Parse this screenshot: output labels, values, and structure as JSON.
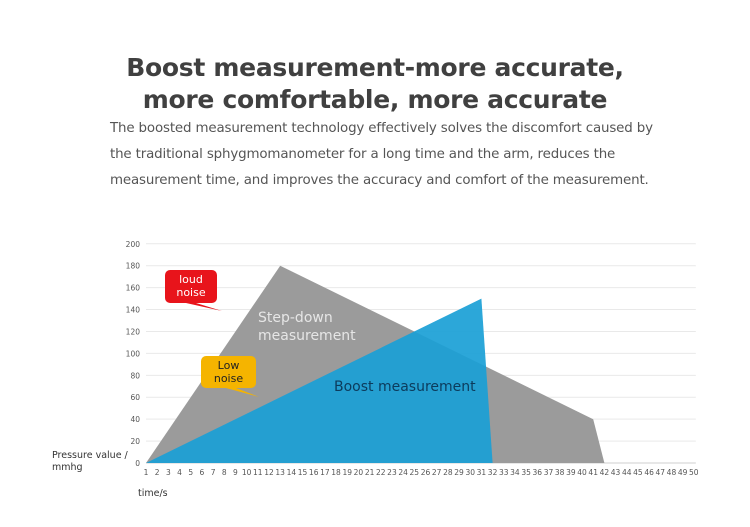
{
  "heading": {
    "line1": "Boost measurement-more accurate,",
    "line2": "more comfortable, more accurate"
  },
  "description": {
    "line1": "The boosted measurement technology effectively solves the discomfort caused by",
    "line2": "the traditional sphygmomanometer for a long time and the arm, reduces the",
    "line3": "measurement time, and improves the accuracy and comfort of the measurement."
  },
  "chart_data": {
    "type": "area",
    "xlabel": "time/s",
    "ylabel": "Pressure value / mmhg",
    "x_ticks": [
      "1",
      "2",
      "3",
      "4",
      "5",
      "6",
      "7",
      "8",
      "9",
      "10",
      "11",
      "12",
      "13",
      "14",
      "15",
      "16",
      "17",
      "18",
      "19",
      "20",
      "21",
      "22",
      "23",
      "24",
      "25",
      "26",
      "27",
      "28",
      "29",
      "30",
      "31",
      "32",
      "33",
      "34",
      "35",
      "36",
      "37",
      "38",
      "39",
      "40",
      "41",
      "42",
      "43",
      "44",
      "45",
      "46",
      "47",
      "48",
      "49",
      "50"
    ],
    "y_ticks": [
      "0",
      "20",
      "40",
      "60",
      "80",
      "100",
      "120",
      "140",
      "160",
      "180",
      "200"
    ],
    "xlim": [
      1,
      50
    ],
    "ylim": [
      0,
      200
    ],
    "grid": true,
    "series": [
      {
        "name": "Step-down measurement",
        "color": "#9b9b9b",
        "points": [
          [
            1,
            0
          ],
          [
            13,
            180
          ],
          [
            41,
            40
          ],
          [
            42,
            0
          ]
        ]
      },
      {
        "name": "Boost measurement",
        "color": "#1a9fd6",
        "points": [
          [
            1,
            0
          ],
          [
            31,
            150
          ],
          [
            32,
            0
          ]
        ]
      }
    ],
    "annotations": [
      {
        "text": "loud noise",
        "color": "#e8141b",
        "text_color": "#ffffff"
      },
      {
        "text": "Low noise",
        "color": "#f5b400",
        "text_color": "#222222"
      }
    ]
  }
}
